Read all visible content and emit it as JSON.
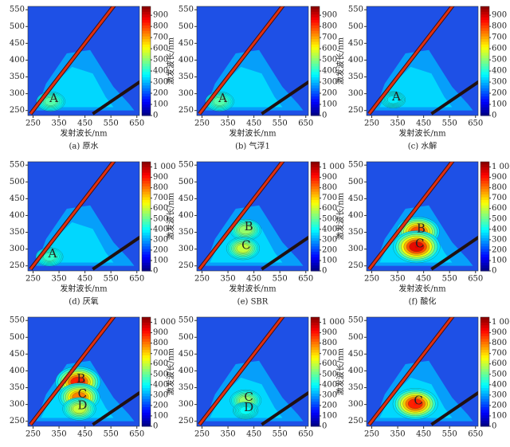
{
  "chart_data": [
    {
      "type": "contour",
      "xlabel": "发射波长/nm",
      "caption": "(a) 原水",
      "xlim": [
        230,
        660
      ],
      "ylim": [
        235,
        560
      ],
      "xticks": [
        250,
        350,
        450,
        550,
        650
      ],
      "yticks": [
        250,
        300,
        350,
        400,
        450,
        500,
        550
      ],
      "clim": [
        0,
        980
      ],
      "cticks": [
        0,
        100,
        200,
        300,
        400,
        500,
        600,
        700,
        800,
        900
      ],
      "peaks": [
        {
          "label": "A",
          "x": 330,
          "y": 285,
          "intensity": 450
        }
      ]
    },
    {
      "type": "contour",
      "xlabel": "发射波长/nm",
      "ylabel": "激发波长/nm",
      "caption": "(b) 气浮1",
      "xlim": [
        230,
        660
      ],
      "ylim": [
        235,
        560
      ],
      "xticks": [
        250,
        350,
        450,
        550,
        650
      ],
      "yticks": [
        250,
        300,
        350,
        400,
        450,
        500,
        550
      ],
      "clim": [
        0,
        980
      ],
      "cticks": [
        0,
        100,
        200,
        300,
        400,
        500,
        600,
        700,
        800,
        900
      ],
      "peaks": [
        {
          "label": "A",
          "x": 330,
          "y": 285,
          "intensity": 450
        }
      ]
    },
    {
      "type": "contour",
      "xlabel": "发射波长/nm",
      "ylabel": "激发波长/nm",
      "caption": "(c) 水解",
      "xlim": [
        230,
        660
      ],
      "ylim": [
        235,
        560
      ],
      "xticks": [
        250,
        350,
        450,
        550,
        650
      ],
      "yticks": [
        250,
        300,
        350,
        400,
        450,
        500,
        550
      ],
      "clim": [
        0,
        980
      ],
      "cticks": [
        0,
        100,
        200,
        300,
        400,
        500,
        600,
        700,
        800,
        900
      ],
      "peaks": [
        {
          "label": "A",
          "x": 345,
          "y": 290,
          "intensity": 350
        }
      ]
    },
    {
      "type": "contour",
      "xlabel": "发射波长/nm",
      "caption": "(d) 厌氧",
      "xlim": [
        230,
        660
      ],
      "ylim": [
        235,
        560
      ],
      "xticks": [
        250,
        350,
        450,
        550,
        650
      ],
      "yticks": [
        250,
        300,
        350,
        400,
        450,
        500,
        550
      ],
      "clim": [
        0,
        1050
      ],
      "cticks": [
        0,
        100,
        200,
        300,
        400,
        500,
        600,
        700,
        800,
        900,
        {
          "value": 1000,
          "label": "1 000"
        }
      ],
      "peaks": [
        {
          "label": "A",
          "x": 325,
          "y": 285,
          "intensity": 450
        }
      ]
    },
    {
      "type": "contour",
      "xlabel": "发射波长/nm",
      "ylabel": "激发波长/nm",
      "caption": "(e) SBR",
      "xlim": [
        230,
        660
      ],
      "ylim": [
        235,
        560
      ],
      "xticks": [
        250,
        350,
        450,
        550,
        650
      ],
      "yticks": [
        250,
        300,
        350,
        400,
        450,
        500,
        550
      ],
      "clim": [
        0,
        1050
      ],
      "cticks": [
        0,
        100,
        200,
        300,
        400,
        500,
        600,
        700,
        800,
        900,
        {
          "value": 1000,
          "label": "1 000"
        }
      ],
      "peaks": [
        {
          "label": "B",
          "x": 430,
          "y": 365,
          "intensity": 550
        },
        {
          "label": "C",
          "x": 420,
          "y": 310,
          "intensity": 600
        }
      ]
    },
    {
      "type": "contour",
      "xlabel": "发射波长/nm",
      "ylabel": "激发波长/nm",
      "caption": "(f) 酸化",
      "xlim": [
        230,
        660
      ],
      "ylim": [
        235,
        560
      ],
      "xticks": [
        250,
        350,
        450,
        550,
        650
      ],
      "yticks": [
        250,
        300,
        350,
        400,
        450,
        500,
        550
      ],
      "clim": [
        0,
        1050
      ],
      "cticks": [
        0,
        100,
        200,
        300,
        400,
        500,
        600,
        700,
        800,
        900,
        {
          "value": 1000,
          "label": "1 000"
        }
      ],
      "peaks": [
        {
          "label": "B",
          "x": 440,
          "y": 360,
          "intensity": 850
        },
        {
          "label": "C",
          "x": 435,
          "y": 315,
          "intensity": 950
        }
      ]
    },
    {
      "type": "contour",
      "xlim": [
        230,
        660
      ],
      "ylim": [
        235,
        560
      ],
      "xticks": [
        250,
        350,
        450,
        550,
        650
      ],
      "yticks": [
        250,
        300,
        350,
        400,
        450,
        500,
        550
      ],
      "clim": [
        0,
        1050
      ],
      "cticks": [
        0,
        100,
        200,
        300,
        400,
        500,
        600,
        700,
        800,
        900,
        {
          "value": 1000,
          "label": "1 000"
        }
      ],
      "peaks": [
        {
          "label": "B",
          "x": 435,
          "y": 375,
          "intensity": 900
        },
        {
          "label": "C",
          "x": 440,
          "y": 330,
          "intensity": 800
        },
        {
          "label": "D",
          "x": 440,
          "y": 295,
          "intensity": 600
        }
      ]
    },
    {
      "type": "contour",
      "ylabel": "激发波长/nm",
      "xlim": [
        230,
        660
      ],
      "ylim": [
        235,
        560
      ],
      "xticks": [
        250,
        350,
        450,
        550,
        650
      ],
      "yticks": [
        250,
        300,
        350,
        400,
        450,
        500,
        550
      ],
      "clim": [
        0,
        1050
      ],
      "cticks": [
        0,
        100,
        200,
        300,
        400,
        500,
        600,
        700,
        800,
        900,
        {
          "value": 1000,
          "label": "1 000"
        }
      ],
      "peaks": [
        {
          "label": "C",
          "x": 430,
          "y": 320,
          "intensity": 550
        },
        {
          "label": "D",
          "x": 430,
          "y": 290,
          "intensity": 400
        }
      ]
    },
    {
      "type": "contour",
      "ylabel": "激发波长/nm",
      "xlim": [
        230,
        660
      ],
      "ylim": [
        235,
        560
      ],
      "xticks": [
        250,
        350,
        450,
        550,
        650
      ],
      "yticks": [
        250,
        300,
        350,
        400,
        450,
        500,
        550
      ],
      "clim": [
        0,
        1050
      ],
      "cticks": [
        0,
        100,
        200,
        300,
        400,
        500,
        600,
        700,
        800,
        900,
        {
          "value": 1000,
          "label": "1 000"
        }
      ],
      "peaks": [
        {
          "label": "C",
          "x": 430,
          "y": 310,
          "intensity": 900
        }
      ]
    }
  ]
}
